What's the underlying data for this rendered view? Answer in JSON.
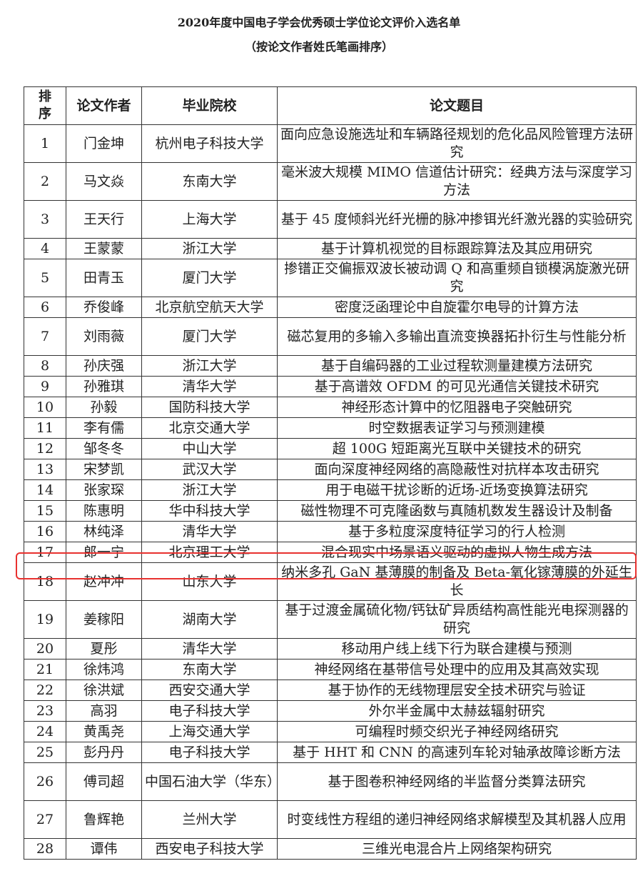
{
  "document": {
    "title": "2020年度中国电子学会优秀硕士学位论文评价入选名单",
    "subtitle": "（按论文作者姓氏笔画排序）"
  },
  "table": {
    "headers": [
      "排序",
      "论文作者",
      "毕业院校",
      "论文题目"
    ],
    "rows": [
      {
        "no": "1",
        "author": "门金坤",
        "school": "杭州电子科技大学",
        "title": "面向应急设施选址和车辆路径规划的危化品风险管理方法研究"
      },
      {
        "no": "2",
        "author": "马文焱",
        "school": "东南大学",
        "title": "毫米波大规模 MIMO 信道估计研究：经典方法与深度学习方法"
      },
      {
        "no": "3",
        "author": "王天行",
        "school": "上海大学",
        "title": "基于 45 度倾斜光纤光栅的脉冲掺铒光纤激光器的实验研究"
      },
      {
        "no": "4",
        "author": "王蒙蒙",
        "school": "浙江大学",
        "title": "基于计算机视觉的目标跟踪算法及其应用研究"
      },
      {
        "no": "5",
        "author": "田青玉",
        "school": "厦门大学",
        "title": "掺镨正交偏振双波长被动调 Q 和高重频自锁模涡旋激光研究"
      },
      {
        "no": "6",
        "author": "乔俊峰",
        "school": "北京航空航天大学",
        "title": "密度泛函理论中自旋霍尔电导的计算方法"
      },
      {
        "no": "7",
        "author": "刘雨薇",
        "school": "厦门大学",
        "title": "磁芯复用的多输入多输出直流变换器拓扑衍生与性能分析"
      },
      {
        "no": "8",
        "author": "孙庆强",
        "school": "浙江大学",
        "title": "基于自编码器的工业过程软测量建模方法研究"
      },
      {
        "no": "9",
        "author": "孙雅琪",
        "school": "清华大学",
        "title": "基于高谱效 OFDM 的可见光通信关键技术研究"
      },
      {
        "no": "10",
        "author": "孙毅",
        "school": "国防科技大学",
        "title": "神经形态计算中的忆阻器电子突触研究"
      },
      {
        "no": "11",
        "author": "李有儒",
        "school": "北京交通大学",
        "title": "时空数据表证学习与预测建模"
      },
      {
        "no": "12",
        "author": "邹冬冬",
        "school": "中山大学",
        "title": "超 100G 短距离光互联中关键技术的研究"
      },
      {
        "no": "13",
        "author": "宋梦凯",
        "school": "武汉大学",
        "title": "面向深度神经网络的高隐蔽性对抗样本攻击研究"
      },
      {
        "no": "14",
        "author": "张家琛",
        "school": "浙江大学",
        "title": "用于电磁干扰诊断的近场-近场变换算法研究"
      },
      {
        "no": "15",
        "author": "陈惠明",
        "school": "华中科技大学",
        "title": "磁性物理不可克隆函数与真随机数发生器设计及制备"
      },
      {
        "no": "16",
        "author": "林纯泽",
        "school": "清华大学",
        "title": "基于多粒度深度特征学习的行人检测"
      },
      {
        "no": "17",
        "author": "郎一宁",
        "school": "北京理工大学",
        "title": "混合现实中场景语义驱动的虚拟人物生成方法"
      },
      {
        "no": "18",
        "author": "赵冲冲",
        "school": "山东大学",
        "title": "纳米多孔 GaN 基薄膜的制备及 Beta-氧化镓薄膜的外延生长"
      },
      {
        "no": "19",
        "author": "姜稼阳",
        "school": "湖南大学",
        "title": "基于过渡金属硫化物/钙钛矿异质结构高性能光电探测器的研究"
      },
      {
        "no": "20",
        "author": "夏彤",
        "school": "清华大学",
        "title": "移动用户线上线下行为联合建模与预测"
      },
      {
        "no": "21",
        "author": "徐炜鸿",
        "school": "东南大学",
        "title": "神经网络在基带信号处理中的应用及其高效实现"
      },
      {
        "no": "22",
        "author": "徐洪斌",
        "school": "西安交通大学",
        "title": "基于协作的无线物理层安全技术研究与验证"
      },
      {
        "no": "23",
        "author": "高羽",
        "school": "电子科技大学",
        "title": "外尔半金属中太赫兹辐射研究"
      },
      {
        "no": "24",
        "author": "黄禹尧",
        "school": "上海交通大学",
        "title": "可编程时频交织光子神经网络研究"
      },
      {
        "no": "25",
        "author": "彭丹丹",
        "school": "电子科技大学",
        "title": "基于 HHT 和 CNN 的高速列车轮对轴承故障诊断方法"
      },
      {
        "no": "26",
        "author": "傅司超",
        "school": "中国石油大学（华东）",
        "title": "基于图卷积神经网络的半监督分类算法研究"
      },
      {
        "no": "27",
        "author": "鲁辉艳",
        "school": "兰州大学",
        "title": "时变线性方程组的递归神经网络求解模型及其机器人应用"
      },
      {
        "no": "28",
        "author": "谭伟",
        "school": "西安电子科技大学",
        "title": "三维光电混合片上网络架构研究"
      }
    ],
    "highlighted_row": "17",
    "highlight_color": "#e8312f"
  }
}
